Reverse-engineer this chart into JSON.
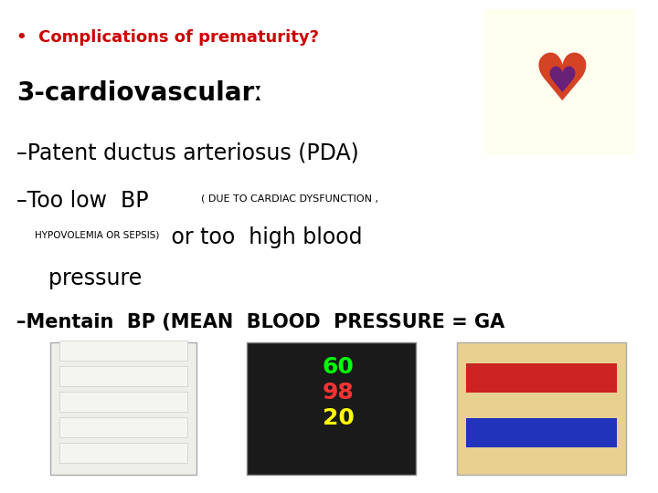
{
  "background_color": "#ffffff",
  "bullet_text": "Complications of prematurity?",
  "bullet_color": "#cc0000",
  "bullet_fontsize": 13,
  "heading_text": "3-cardiovascularː",
  "heading_color": "#000000",
  "heading_fontsize": 20,
  "line1_text": "–Patent ductus arteriosus (PDA)",
  "line1_fontsize": 17,
  "line2a_text": "–Too low  BP",
  "line2a_fontsize": 17,
  "line2b_text": "( DUE TO CARDIAC DYSFUNCTION ,",
  "line2b_fontsize": 8,
  "line3a_text": "HYPOVOLEMIA OR SEPSIS)",
  "line3a_fontsize": 7.5,
  "line3b_text": " or too  high blood",
  "line3b_fontsize": 17,
  "line4_text": "  pressure",
  "line4_fontsize": 17,
  "line5_text": "–Mentain  BP (MEAN  BLOOD  PRESSURE = GA",
  "line5_fontsize": 15,
  "img_left_color": "#e8e8e0",
  "img_mid_color": "#202020",
  "img_right_color": "#e8d8a0"
}
